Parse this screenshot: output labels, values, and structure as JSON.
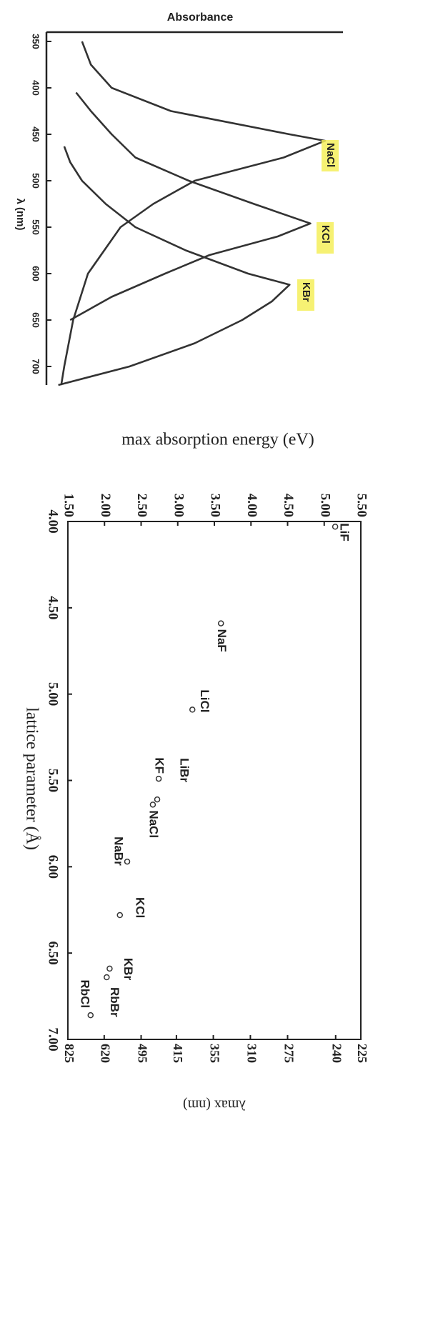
{
  "chart_data": [
    {
      "type": "line",
      "ylabel": "Absorbance",
      "xlabel": "λ (nm)",
      "xlim": [
        340,
        720
      ],
      "xticks": [
        350,
        400,
        450,
        500,
        550,
        600,
        650,
        700
      ],
      "ylim": [
        0,
        1
      ],
      "series": [
        {
          "name": "NaCl",
          "color": "#333333",
          "x": [
            350,
            375,
            400,
            425,
            450,
            457,
            475,
            500,
            525,
            550,
            600,
            650,
            700,
            720
          ],
          "values": [
            0.12,
            0.15,
            0.22,
            0.42,
            0.82,
            0.94,
            0.8,
            0.5,
            0.36,
            0.25,
            0.14,
            0.09,
            0.06,
            0.05
          ]
        },
        {
          "name": "KCl",
          "color": "#333333",
          "x": [
            405,
            425,
            450,
            475,
            500,
            525,
            546,
            560,
            580,
            600,
            625,
            650
          ],
          "values": [
            0.1,
            0.15,
            0.22,
            0.3,
            0.48,
            0.7,
            0.89,
            0.78,
            0.55,
            0.4,
            0.22,
            0.08
          ]
        },
        {
          "name": "KBr",
          "color": "#333333",
          "x": [
            463,
            480,
            500,
            525,
            550,
            575,
            600,
            612,
            630,
            650,
            675,
            700,
            720
          ],
          "values": [
            0.06,
            0.08,
            0.12,
            0.2,
            0.3,
            0.47,
            0.68,
            0.82,
            0.76,
            0.66,
            0.5,
            0.28,
            0.04
          ]
        }
      ]
    },
    {
      "type": "scatter",
      "xlabel": "lattice parameter (Å)",
      "ylabel": "max absorption energy (eV)",
      "y2label": "λmax (nm)",
      "xlim": [
        4.0,
        7.0
      ],
      "xticks": [
        {
          "value": 4.0,
          "label": "4.00"
        },
        {
          "value": 4.5,
          "label": "4.50"
        },
        {
          "value": 5.0,
          "label": "5.00"
        },
        {
          "value": 5.5,
          "label": "5.50"
        },
        {
          "value": 6.0,
          "label": "6.00"
        },
        {
          "value": 6.5,
          "label": "6.50"
        },
        {
          "value": 7.0,
          "label": "7.00"
        }
      ],
      "ylim": [
        1.5,
        5.5
      ],
      "yticks": [
        {
          "value": 1.5,
          "label": "1.50"
        },
        {
          "value": 2.0,
          "label": "2.00"
        },
        {
          "value": 2.5,
          "label": "2.50"
        },
        {
          "value": 3.0,
          "label": "3.00"
        },
        {
          "value": 3.5,
          "label": "3.50"
        },
        {
          "value": 4.0,
          "label": "4.00"
        },
        {
          "value": 4.5,
          "label": "4.50"
        },
        {
          "value": 5.0,
          "label": "5.00"
        },
        {
          "value": 5.5,
          "label": "5.50"
        }
      ],
      "y2scale": "reciprocal",
      "y2lim": [
        825,
        225
      ],
      "y2ticks": [
        825,
        620,
        495,
        415,
        355,
        310,
        275,
        240,
        225
      ],
      "color": "#333333",
      "labels": [
        "LiF",
        "NaF",
        "LiCl",
        "KF",
        "LiBr",
        "NaCl",
        "NaBr",
        "KCl",
        "KBr",
        "RbBr",
        "RbCl"
      ],
      "x": [
        4.03,
        4.59,
        5.09,
        5.49,
        5.61,
        5.64,
        5.97,
        6.28,
        6.59,
        6.64,
        6.86
      ],
      "values": [
        5.15,
        3.59,
        3.2,
        2.74,
        2.72,
        2.66,
        2.31,
        2.21,
        2.07,
        2.03,
        1.81
      ]
    }
  ]
}
